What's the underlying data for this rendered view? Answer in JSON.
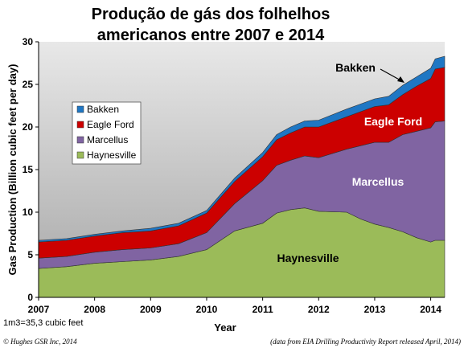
{
  "title_lines": [
    "Produção de gás dos folhelhos",
    "americanos entre 2007 e 2014"
  ],
  "note": "1m3=35,3 cubic feet",
  "copyright": "© Hughes GSR Inc, 2014",
  "source": "(data from EIA Drilling Productivity Report released April, 2014)",
  "chart_data": {
    "type": "area",
    "stacked": true,
    "xlabel": "Year",
    "ylabel": "Gas Production (Billion cubic feet per day)",
    "xlim": [
      2007,
      2014.25
    ],
    "ylim": [
      0,
      30
    ],
    "x_ticks": [
      "2007",
      "2008",
      "2009",
      "2010",
      "2011",
      "2012",
      "2013",
      "2014"
    ],
    "y_ticks": [
      "0",
      "5",
      "10",
      "15",
      "20",
      "25",
      "30"
    ],
    "grid": false,
    "legend_position": "left",
    "x": [
      2007,
      2007.5,
      2008,
      2008.5,
      2008.75,
      2009,
      2009.5,
      2010,
      2010.5,
      2011,
      2011.25,
      2011.5,
      2011.75,
      2012,
      2012.5,
      2012.75,
      2013,
      2013.25,
      2013.5,
      2013.75,
      2014,
      2014.08,
      2014.25
    ],
    "series": [
      {
        "name": "Haynesville",
        "color": "#9bbb59",
        "values": [
          3.4,
          3.6,
          4.0,
          4.2,
          4.3,
          4.4,
          4.8,
          5.6,
          7.8,
          8.7,
          9.9,
          10.3,
          10.5,
          10.1,
          10.0,
          9.2,
          8.6,
          8.2,
          7.7,
          7.0,
          6.5,
          6.7,
          6.7
        ]
      },
      {
        "name": "Marcellus",
        "color": "#8064a2",
        "values": [
          1.2,
          1.2,
          1.3,
          1.4,
          1.4,
          1.4,
          1.5,
          2.0,
          3.2,
          5.0,
          5.6,
          5.8,
          6.1,
          6.3,
          7.4,
          8.6,
          9.6,
          10.0,
          11.4,
          12.5,
          13.4,
          13.9,
          14.0
        ]
      },
      {
        "name": "Eagle Ford",
        "color": "#cc0000",
        "values": [
          1.9,
          1.9,
          1.9,
          2.0,
          2.0,
          2.0,
          2.1,
          2.3,
          2.6,
          2.8,
          3.0,
          3.2,
          3.4,
          3.6,
          3.8,
          4.0,
          4.2,
          4.4,
          4.7,
          5.3,
          5.8,
          6.2,
          6.3
        ]
      },
      {
        "name": "Bakken",
        "color": "#1f77c4",
        "values": [
          0.2,
          0.2,
          0.2,
          0.2,
          0.25,
          0.3,
          0.3,
          0.3,
          0.4,
          0.5,
          0.6,
          0.7,
          0.7,
          0.8,
          0.9,
          0.9,
          0.9,
          1.0,
          1.1,
          1.1,
          1.2,
          1.2,
          1.3
        ]
      }
    ],
    "area_labels": {
      "bakken": "Bakken",
      "eagle_ford": "Eagle Ford",
      "marcellus": "Marcellus",
      "haynesville": "Haynesville"
    },
    "legend": [
      "Bakken",
      "Eagle Ford",
      "Marcellus",
      "Haynesville"
    ]
  }
}
